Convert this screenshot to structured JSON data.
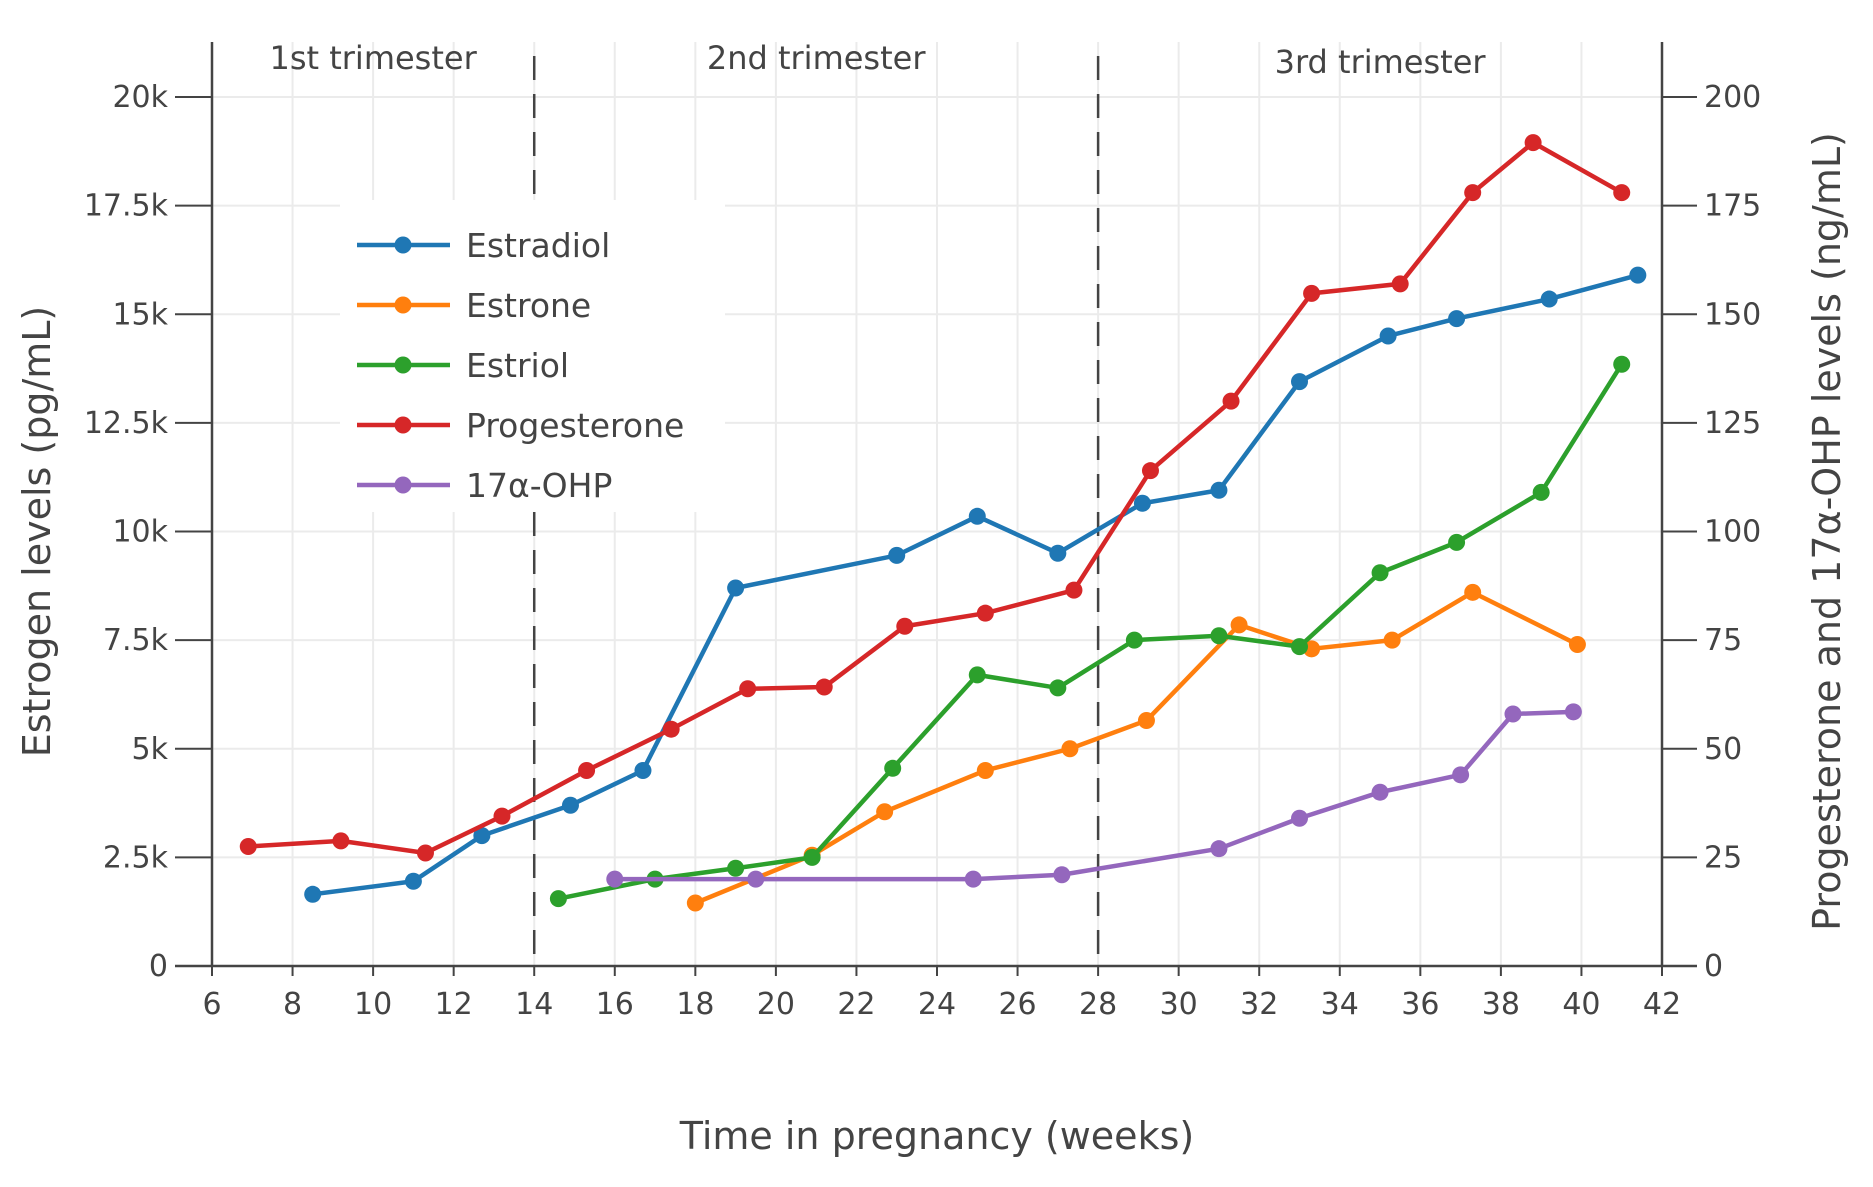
{
  "chart_data": {
    "type": "line",
    "xlabel": "Time in pregnancy (weeks)",
    "ylabel_left": "Estrogen levels (pg/mL)",
    "ylabel_right": "Progesterone and 17α-OHP levels (ng/mL)",
    "xlim": [
      6,
      42
    ],
    "ylim_left": [
      0,
      20000
    ],
    "ylim_right": [
      0,
      200
    ],
    "x_ticks": [
      6,
      8,
      10,
      12,
      14,
      16,
      18,
      20,
      22,
      24,
      26,
      28,
      30,
      32,
      34,
      36,
      38,
      40,
      42
    ],
    "x_tick_labels": [
      "6",
      "8",
      "10",
      "12",
      "14",
      "16",
      "18",
      "20",
      "22",
      "24",
      "26",
      "28",
      "30",
      "32",
      "34",
      "36",
      "38",
      "40",
      "42"
    ],
    "y_left_ticks": [
      0,
      2500,
      5000,
      7500,
      10000,
      12500,
      15000,
      17500,
      20000
    ],
    "y_left_tick_labels": [
      "0",
      "2.5k",
      "5k",
      "7.5k",
      "10k",
      "12.5k",
      "15k",
      "17.5k",
      "20k"
    ],
    "y_right_ticks": [
      0,
      25,
      50,
      75,
      100,
      125,
      150,
      175,
      200
    ],
    "y_right_tick_labels": [
      "0",
      "25",
      "50",
      "75",
      "100",
      "125",
      "150",
      "175",
      "200"
    ],
    "grid": true,
    "legend_position": "top-left",
    "regions": [
      {
        "label": "1st trimester",
        "x_start": 6,
        "x_end": 14
      },
      {
        "label": "2nd trimester",
        "x_start": 14,
        "x_end": 28
      },
      {
        "label": "3rd trimester",
        "x_start": 28,
        "x_end": 42
      }
    ],
    "dividers_x": [
      14,
      28
    ],
    "series": [
      {
        "name": "Estradiol",
        "axis": "left",
        "color": "#1f77b4",
        "x": [
          8.5,
          11,
          12.7,
          14.9,
          16.7,
          19,
          23,
          25,
          27,
          29.1,
          31,
          33,
          35.2,
          36.9,
          39.2,
          41.4
        ],
        "y": [
          1650,
          1950,
          3000,
          3700,
          4500,
          8700,
          9450,
          10350,
          9500,
          10650,
          10950,
          13450,
          14500,
          14900,
          15350,
          15900
        ]
      },
      {
        "name": "Estrone",
        "axis": "left",
        "color": "#ff7f0e",
        "x": [
          18,
          20.9,
          22.7,
          25.2,
          27.3,
          29.2,
          31.5,
          33.3,
          35.3,
          37.3,
          39.9
        ],
        "y": [
          1450,
          2550,
          3550,
          4500,
          5000,
          5650,
          7850,
          7300,
          7500,
          8600,
          7400
        ]
      },
      {
        "name": "Estriol",
        "axis": "left",
        "color": "#2ca02c",
        "x": [
          14.6,
          17,
          19,
          20.9,
          22.9,
          25,
          27,
          28.9,
          31,
          33,
          35,
          36.9,
          39,
          41
        ],
        "y": [
          1550,
          2000,
          2250,
          2500,
          4550,
          6700,
          6400,
          7500,
          7600,
          7350,
          9050,
          9750,
          10900,
          13850
        ]
      },
      {
        "name": "Progesterone",
        "axis": "right",
        "color": "#d62728",
        "x": [
          6.9,
          9.2,
          11.3,
          13.2,
          15.3,
          17.4,
          19.3,
          21.2,
          23.2,
          25.2,
          27.4,
          29.3,
          31.3,
          33.3,
          35.5,
          37.3,
          38.8,
          41
        ],
        "y": [
          27.5,
          28.8,
          26,
          34.5,
          45,
          54.5,
          63.8,
          64.2,
          78.2,
          81.2,
          86.5,
          114,
          130,
          154.8,
          157,
          178,
          189.5,
          178
        ]
      },
      {
        "name": "17α-OHP",
        "axis": "right",
        "color": "#9467bd",
        "x": [
          16,
          19.5,
          24.9,
          27.1,
          31,
          33,
          35,
          37,
          38.3,
          39.8
        ],
        "y": [
          20,
          20,
          20,
          21,
          27,
          34,
          40,
          44,
          58,
          58.5
        ]
      }
    ]
  }
}
